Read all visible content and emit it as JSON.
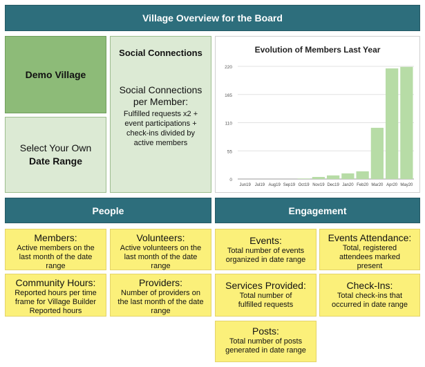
{
  "header": {
    "title": "Village Overview for the Board"
  },
  "village": {
    "name": "Demo Village"
  },
  "date_range": {
    "line1": "Select Your Own",
    "line2": "Date Range"
  },
  "social": {
    "title": "Social Connections",
    "metric_line1": "Social Connections",
    "metric_line2": "per Member:",
    "desc_lines": [
      "Fulfilled requests x2 +",
      "event participations +",
      "check-ins divided by",
      "active members"
    ]
  },
  "chart_data": {
    "type": "bar",
    "title": "Evolution of Members Last Year",
    "categories": [
      "Jun19",
      "Jul19",
      "Aug19",
      "Sep19",
      "Oct19",
      "Nov19",
      "Dec19",
      "Jan20",
      "Feb20",
      "Mar20",
      "Apr20",
      "May20"
    ],
    "values": [
      0,
      0,
      0,
      0,
      1,
      4,
      7,
      11,
      15,
      100,
      216,
      219
    ],
    "ylim": [
      0,
      220
    ],
    "yticks": [
      0,
      55,
      110,
      165,
      220
    ],
    "grid": true,
    "color": "#b7dca6"
  },
  "sections": {
    "people": "People",
    "engagement": "Engagement"
  },
  "cards": {
    "members": {
      "title": "Members:",
      "desc": [
        "Active members on the",
        "last month of the date",
        "range"
      ]
    },
    "volunteers": {
      "title": "Volunteers:",
      "desc": [
        "Active volunteers on the",
        "last month of the date",
        "range"
      ]
    },
    "hours": {
      "title": "Community Hours:",
      "desc": [
        "Reported hours per time",
        "frame for Village Builder",
        "Reported hours"
      ]
    },
    "providers": {
      "title": "Providers:",
      "desc": [
        "Number of providers on",
        "the last month of the date",
        "range"
      ]
    },
    "events": {
      "title": "Events:",
      "desc": [
        "Total number of events",
        "organized in date range"
      ]
    },
    "attendance": {
      "title": "Events Attendance:",
      "desc": [
        "Total, registered",
        "attendees marked",
        "present"
      ]
    },
    "services": {
      "title": "Services Provided:",
      "desc": [
        "Total number of",
        "fulfilled requests"
      ]
    },
    "checkins": {
      "title": "Check-Ins:",
      "desc": [
        "Total check-ins that",
        "occurred in date range"
      ]
    },
    "posts": {
      "title": "Posts:",
      "desc": [
        "Total number of posts",
        "generated in date range"
      ]
    }
  }
}
